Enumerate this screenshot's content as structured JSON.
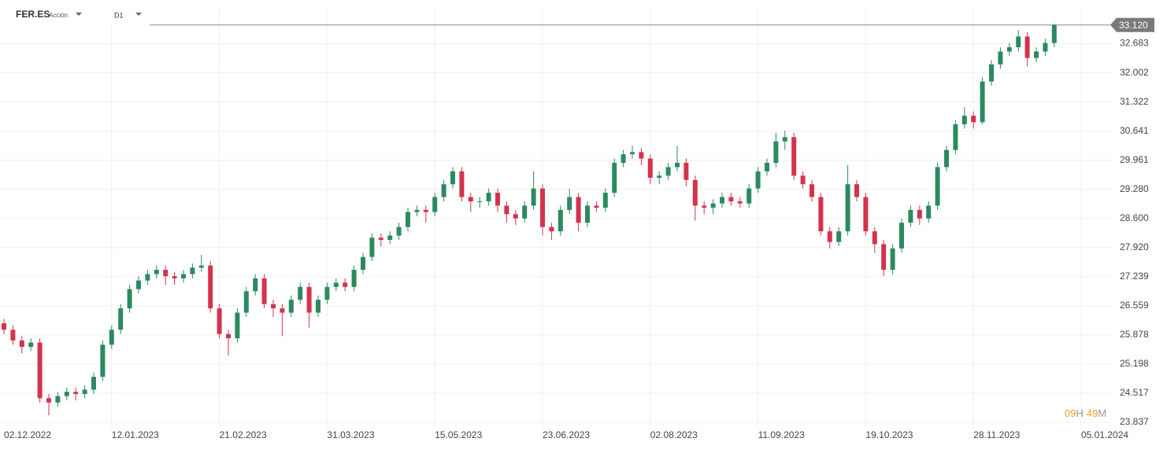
{
  "header": {
    "symbol": "FER.ES",
    "kind": "Acción",
    "timeframe": "D1"
  },
  "countdown": {
    "hours": "09",
    "hours_unit": "H",
    "minutes": "49",
    "minutes_unit": "M"
  },
  "chart_data": {
    "type": "candlestick",
    "categories": [
      "02.12.2022",
      null,
      null,
      null,
      null,
      null,
      null,
      null,
      null,
      null,
      null,
      null,
      "12.01.2023",
      null,
      null,
      null,
      null,
      null,
      null,
      null,
      null,
      null,
      null,
      null,
      "21.02.2023",
      null,
      null,
      null,
      null,
      null,
      null,
      null,
      null,
      null,
      null,
      null,
      "31.03.2023",
      null,
      null,
      null,
      null,
      null,
      null,
      null,
      null,
      null,
      null,
      null,
      "15.05.2023",
      null,
      null,
      null,
      null,
      null,
      null,
      null,
      null,
      null,
      null,
      null,
      "23.06.2023",
      null,
      null,
      null,
      null,
      null,
      null,
      null,
      null,
      null,
      null,
      null,
      "02.08.2023",
      null,
      null,
      null,
      null,
      null,
      null,
      null,
      null,
      null,
      null,
      null,
      "11.09.2023",
      null,
      null,
      null,
      null,
      null,
      null,
      null,
      null,
      null,
      null,
      null,
      "19.10.2023",
      null,
      null,
      null,
      null,
      null,
      null,
      null,
      null,
      null,
      null,
      null,
      "28.11.2023",
      null,
      null,
      null,
      null,
      null,
      null,
      null,
      null,
      null,
      null,
      null,
      "05.01.2024"
    ],
    "open": [
      26.15,
      26.0,
      25.75,
      25.6,
      25.7,
      24.4,
      24.3,
      24.45,
      24.55,
      24.5,
      24.6,
      24.9,
      25.65,
      26.0,
      26.5,
      26.95,
      27.15,
      27.3,
      27.4,
      27.25,
      27.2,
      27.3,
      27.45,
      27.5,
      26.5,
      25.9,
      25.8,
      26.4,
      26.9,
      27.2,
      26.6,
      26.5,
      26.4,
      26.7,
      27.0,
      26.4,
      26.7,
      27.0,
      27.1,
      27.0,
      27.4,
      27.7,
      28.15,
      28.1,
      28.2,
      28.4,
      28.75,
      28.8,
      28.75,
      29.1,
      29.4,
      29.7,
      29.1,
      29.0,
      29.0,
      29.2,
      28.9,
      28.7,
      28.6,
      28.9,
      29.3,
      28.4,
      28.3,
      28.8,
      29.1,
      28.5,
      28.9,
      28.85,
      29.2,
      29.9,
      30.1,
      30.15,
      30.0,
      29.55,
      29.6,
      29.8,
      29.9,
      29.5,
      28.9,
      28.85,
      28.95,
      29.1,
      29.0,
      28.95,
      29.3,
      29.7,
      29.9,
      30.4,
      30.5,
      29.6,
      29.4,
      29.1,
      28.3,
      28.05,
      28.3,
      29.4,
      29.1,
      28.3,
      28.0,
      27.4,
      27.9,
      28.5,
      28.8,
      28.6,
      28.9,
      29.8,
      30.2,
      30.8,
      31.0,
      30.85,
      31.8,
      32.2,
      32.5,
      32.6,
      32.85,
      32.35,
      32.5,
      32.7,
      null,
      null,
      null
    ],
    "high": [
      26.25,
      26.1,
      25.85,
      25.8,
      25.8,
      24.5,
      24.55,
      24.65,
      24.65,
      24.7,
      25.0,
      25.75,
      26.1,
      26.6,
      27.05,
      27.25,
      27.4,
      27.5,
      27.5,
      27.35,
      27.4,
      27.55,
      27.75,
      27.6,
      26.6,
      26.0,
      26.5,
      27.0,
      27.3,
      27.3,
      26.7,
      26.6,
      26.8,
      27.1,
      27.1,
      26.8,
      27.1,
      27.2,
      27.2,
      27.5,
      27.8,
      28.25,
      28.25,
      28.3,
      28.5,
      28.85,
      28.9,
      28.9,
      29.2,
      29.5,
      29.8,
      29.8,
      29.2,
      29.1,
      29.3,
      29.3,
      29.0,
      28.8,
      29.0,
      29.7,
      29.4,
      28.5,
      28.9,
      29.3,
      29.2,
      29.0,
      29.0,
      29.3,
      30.0,
      30.2,
      30.3,
      30.25,
      30.1,
      29.7,
      29.9,
      30.3,
      30.0,
      29.6,
      29.0,
      29.05,
      29.2,
      29.2,
      29.1,
      29.4,
      29.8,
      30.0,
      30.6,
      30.65,
      30.6,
      29.7,
      29.5,
      29.2,
      28.4,
      28.4,
      29.85,
      29.5,
      29.2,
      28.4,
      28.1,
      28.0,
      28.6,
      28.9,
      28.9,
      29.0,
      29.9,
      30.3,
      30.9,
      31.2,
      31.1,
      31.9,
      32.3,
      32.6,
      32.7,
      33.0,
      32.95,
      32.6,
      32.8,
      33.15,
      null,
      null,
      null
    ],
    "low": [
      25.9,
      25.65,
      25.45,
      25.5,
      24.3,
      24.0,
      24.2,
      24.35,
      24.35,
      24.4,
      24.5,
      24.8,
      25.55,
      25.9,
      26.4,
      26.85,
      27.05,
      27.2,
      27.05,
      27.05,
      27.1,
      27.2,
      27.35,
      26.4,
      25.8,
      25.4,
      25.7,
      26.3,
      26.8,
      26.5,
      26.3,
      25.85,
      26.3,
      26.6,
      26.05,
      26.3,
      26.6,
      26.9,
      26.9,
      26.9,
      27.3,
      27.6,
      27.95,
      28.0,
      28.1,
      28.3,
      28.65,
      28.5,
      28.65,
      29.0,
      29.3,
      29.0,
      28.75,
      28.85,
      28.9,
      28.75,
      28.5,
      28.45,
      28.5,
      28.8,
      28.2,
      28.1,
      28.2,
      28.7,
      28.3,
      28.4,
      28.75,
      28.75,
      29.1,
      29.8,
      30.0,
      29.85,
      29.4,
      29.4,
      29.5,
      29.7,
      29.35,
      28.55,
      28.7,
      28.7,
      28.85,
      28.9,
      28.85,
      28.85,
      29.2,
      29.6,
      29.8,
      30.2,
      29.5,
      29.3,
      29.0,
      28.2,
      27.9,
      27.95,
      28.2,
      29.0,
      28.2,
      27.8,
      27.25,
      27.3,
      27.8,
      28.4,
      28.45,
      28.5,
      28.8,
      29.7,
      30.1,
      30.7,
      30.7,
      30.8,
      31.7,
      32.1,
      32.4,
      32.5,
      32.15,
      32.25,
      32.4,
      32.6,
      null,
      null,
      null
    ],
    "close": [
      26.0,
      25.75,
      25.6,
      25.7,
      24.4,
      24.3,
      24.45,
      24.55,
      24.5,
      24.6,
      24.9,
      25.65,
      26.0,
      26.5,
      26.95,
      27.15,
      27.3,
      27.4,
      27.25,
      27.2,
      27.3,
      27.45,
      27.5,
      26.5,
      25.9,
      25.8,
      26.4,
      26.9,
      27.2,
      26.6,
      26.5,
      26.4,
      26.7,
      27.0,
      26.4,
      26.7,
      27.0,
      27.1,
      27.0,
      27.4,
      27.7,
      28.15,
      28.1,
      28.2,
      28.4,
      28.75,
      28.8,
      28.75,
      29.1,
      29.4,
      29.7,
      29.1,
      29.0,
      29.0,
      29.2,
      28.9,
      28.7,
      28.6,
      28.9,
      29.3,
      28.4,
      28.3,
      28.8,
      29.1,
      28.5,
      28.9,
      28.85,
      29.2,
      29.9,
      30.1,
      30.15,
      30.0,
      29.55,
      29.6,
      29.8,
      29.9,
      29.5,
      28.9,
      28.85,
      28.95,
      29.1,
      29.0,
      28.95,
      29.3,
      29.7,
      29.9,
      30.4,
      30.5,
      29.6,
      29.4,
      29.1,
      28.3,
      28.05,
      28.3,
      29.4,
      29.1,
      28.3,
      28.0,
      27.4,
      27.9,
      28.5,
      28.8,
      28.6,
      28.9,
      29.8,
      30.2,
      30.8,
      31.0,
      30.85,
      31.8,
      32.2,
      32.5,
      32.6,
      32.85,
      32.35,
      32.5,
      32.7,
      33.12,
      null,
      null,
      null
    ],
    "up_color": "#2b8a5e",
    "down_color": "#d3334d",
    "ylim": [
      23.69,
      33.52
    ],
    "yticks": [
      23.837,
      24.517,
      25.198,
      25.878,
      26.559,
      {
        "value": 27.239,
        "label": "27.239"
      },
      {
        "value": 27.92,
        "label": "27.920"
      },
      {
        "value": 28.6,
        "label": "28.600"
      },
      {
        "value": 29.28,
        "label": "29.280"
      },
      29.961,
      30.641,
      31.322,
      32.002,
      32.683
    ],
    "last_price": {
      "value": 33.12,
      "label": "33.120"
    },
    "grid": true
  }
}
